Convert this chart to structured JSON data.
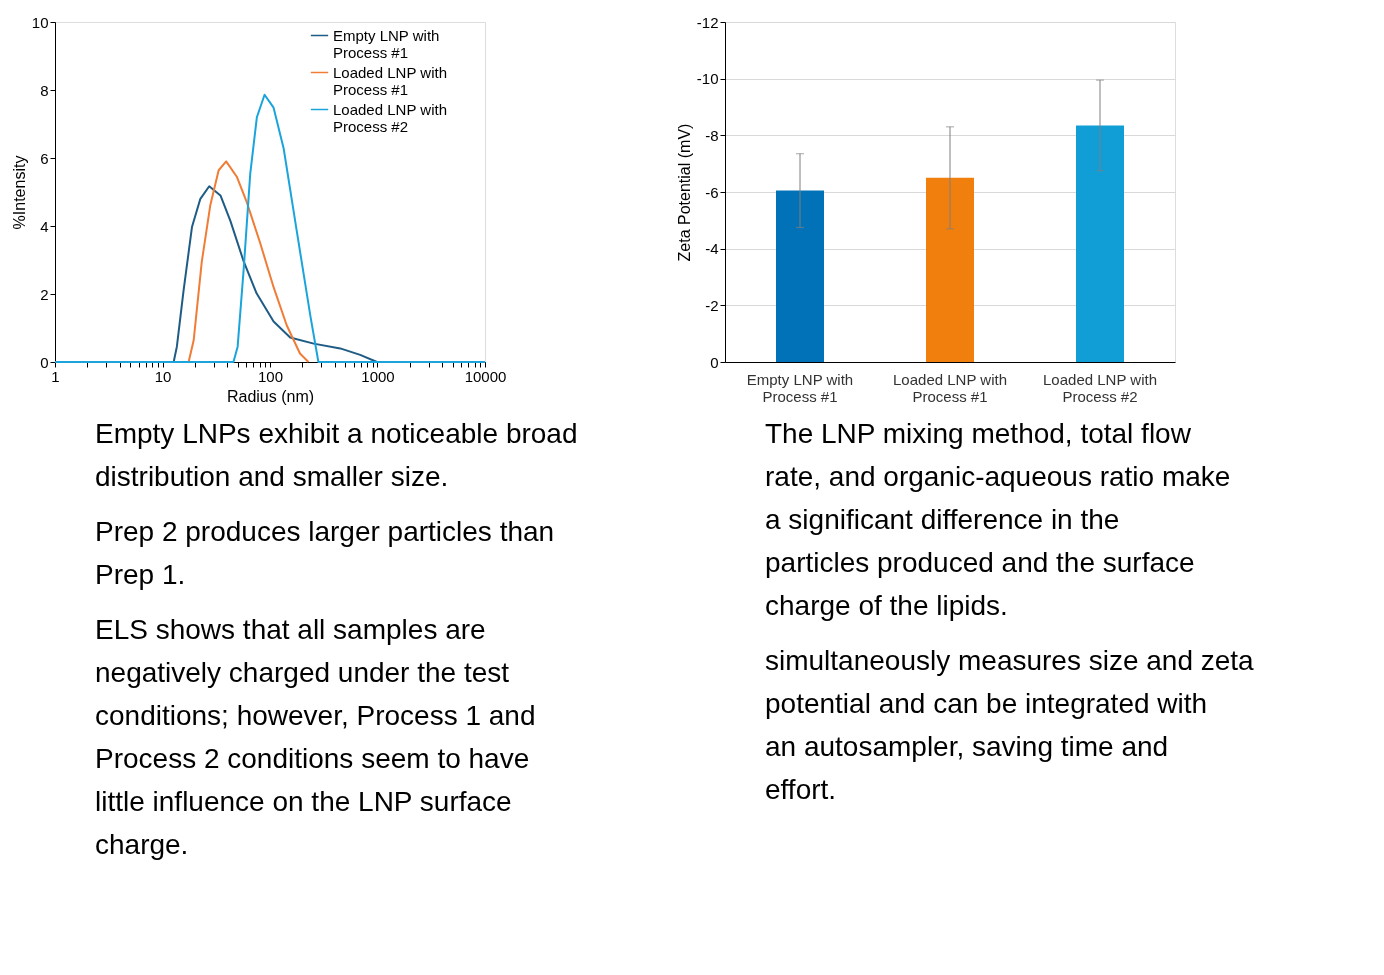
{
  "chart_data": [
    {
      "type": "line",
      "xlabel": "Radius (nm)",
      "ylabel": "%Intensity",
      "log": "x",
      "xlim": [
        1,
        10000
      ],
      "ylim": [
        0,
        10
      ],
      "xticks": [
        1,
        {
          "value": 2,
          "label": null
        },
        {
          "value": 3,
          "label": null
        },
        {
          "value": 4,
          "label": null
        },
        {
          "value": 5,
          "label": null
        },
        {
          "value": 6,
          "label": null
        },
        {
          "value": 7,
          "label": null
        },
        {
          "value": 8,
          "label": null
        },
        {
          "value": 9,
          "label": null
        },
        10,
        {
          "value": 20,
          "label": null
        },
        {
          "value": 30,
          "label": null
        },
        {
          "value": 40,
          "label": null
        },
        {
          "value": 50,
          "label": null
        },
        {
          "value": 60,
          "label": null
        },
        {
          "value": 70,
          "label": null
        },
        {
          "value": 80,
          "label": null
        },
        {
          "value": 90,
          "label": null
        },
        100,
        {
          "value": 200,
          "label": null
        },
        {
          "value": 300,
          "label": null
        },
        {
          "value": 400,
          "label": null
        },
        {
          "value": 500,
          "label": null
        },
        {
          "value": 600,
          "label": null
        },
        {
          "value": 700,
          "label": null
        },
        {
          "value": 800,
          "label": null
        },
        {
          "value": 900,
          "label": null
        },
        1000,
        {
          "value": 2000,
          "label": null
        },
        {
          "value": 3000,
          "label": null
        },
        {
          "value": 4000,
          "label": null
        },
        {
          "value": 5000,
          "label": null
        },
        {
          "value": 6000,
          "label": null
        },
        {
          "value": 7000,
          "label": null
        },
        {
          "value": 8000,
          "label": null
        },
        {
          "value": 9000,
          "label": null
        },
        10000
      ],
      "yticks": [
        0,
        2,
        4,
        6,
        8,
        10
      ],
      "grid": false,
      "legend": "top right",
      "marker": "none",
      "line_style": "solid",
      "series": [
        {
          "name": "Empty LNP with Process #1",
          "color": "#1f5c85",
          "x": [
            12.7,
            13.6,
            15.7,
            18.8,
            22.5,
            27.2,
            34.6,
            42.8,
            57,
            75,
            108,
            154,
            255,
            450,
            690,
            990
          ],
          "values": [
            0,
            0.45,
            2.1,
            3.97,
            4.8,
            5.17,
            4.9,
            4.15,
            2.95,
            2.02,
            1.19,
            0.72,
            0.54,
            0.4,
            0.21,
            0
          ]
        },
        {
          "name": "Loaded LNP with Process #1",
          "color": "#f07c36",
          "x": [
            17.5,
            19.5,
            23.2,
            27.8,
            33.3,
            39.1,
            49.1,
            60.8,
            81,
            108,
            143,
            190,
            228
          ],
          "values": [
            0,
            0.64,
            2.95,
            4.6,
            5.64,
            5.9,
            5.45,
            4.7,
            3.5,
            2.2,
            1.08,
            0.25,
            0
          ]
        },
        {
          "name": "Loaded LNP with Process #2",
          "color": "#1ba4dc",
          "x": [
            1,
            45.7,
            50,
            57,
            65.5,
            75.5,
            89,
            108,
            134,
            177,
            237,
            282,
            10000
          ],
          "values": [
            0,
            0,
            0.45,
            2.76,
            5.54,
            7.2,
            7.86,
            7.48,
            6.28,
            3.87,
            1.37,
            0,
            0
          ]
        }
      ],
      "annotations": [
        "Empty LNPs exhibit a noticeable broad distribution and smaller size.",
        "Prep 2 produces larger particles than Prep 1.",
        "ELS shows that all samples are negatively charged under the test conditions; however, Process 1 and Process 2 conditions seem to have little influence on the LNP surface charge."
      ]
    },
    {
      "type": "bar",
      "ylabel": "Zeta Potential (mV)",
      "categories": [
        "Empty LNP with Process #1",
        "Loaded LNP with Process #1",
        "Loaded LNP with Process #2"
      ],
      "values": [
        -6.05,
        -6.5,
        -8.35
      ],
      "colors": [
        "#0272b8",
        "#f07f0e",
        "#119ed6"
      ],
      "errors": [
        1.3,
        1.8,
        1.6
      ],
      "ylim": [
        0,
        -12
      ],
      "yticks": [
        0,
        -2,
        -4,
        -6,
        -8,
        -10,
        -12
      ],
      "grid": "y",
      "annotations": [
        "The LNP mixing method, total flow rate, and organic-aqueous ratio make a significant difference in the particles produced and the surface charge of the lipids.",
        "simultaneously measures size and zeta potential and can be integrated with an autosampler, saving time and effort."
      ]
    }
  ]
}
